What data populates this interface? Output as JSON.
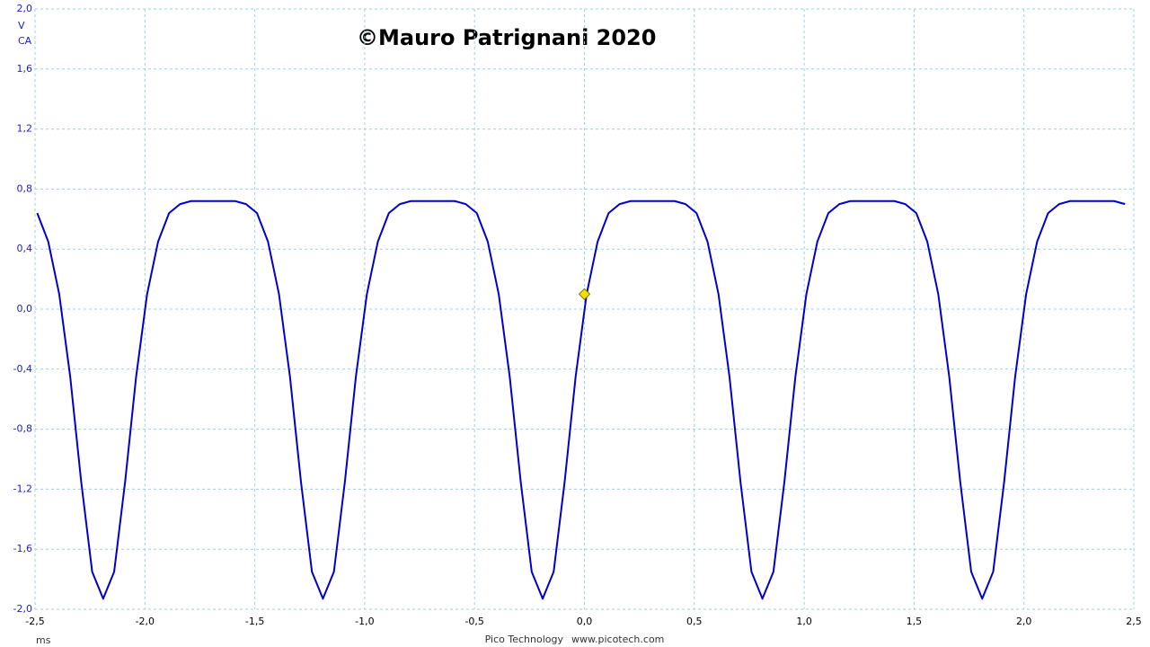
{
  "chart_data": {
    "type": "line",
    "title": "©Mauro Patrignani 2020",
    "y_unit": "V",
    "y_coupling": "CA",
    "x_unit": "ms",
    "footer": [
      "Pico Technology",
      "www.picotech.com"
    ],
    "color": "#0000c8",
    "x": [
      -2.49,
      -2.44,
      -2.39,
      -2.34,
      -2.29,
      -2.24,
      -2.19,
      -2.14,
      -2.09,
      -2.04,
      -1.99,
      -1.94,
      -1.89,
      -1.84,
      -1.79,
      -1.74,
      -1.69,
      -1.64,
      -1.59,
      -1.54,
      -1.49,
      -1.44,
      -1.39,
      -1.34,
      -1.29,
      -1.24,
      -1.19,
      -1.14,
      -1.09,
      -1.04,
      -0.99,
      -0.94,
      -0.89,
      -0.84,
      -0.79,
      -0.74,
      -0.69,
      -0.64,
      -0.59,
      -0.54,
      -0.49,
      -0.44,
      -0.39,
      -0.34,
      -0.29,
      -0.24,
      -0.19,
      -0.14,
      -0.09,
      -0.04,
      0.01,
      0.06,
      0.11,
      0.16,
      0.21,
      0.26,
      0.31,
      0.36,
      0.41,
      0.46,
      0.51,
      0.56,
      0.61,
      0.66,
      0.71,
      0.76,
      0.81,
      0.86,
      0.91,
      0.96,
      1.01,
      1.06,
      1.11,
      1.16,
      1.21,
      1.26,
      1.31,
      1.36,
      1.41,
      1.46,
      1.51,
      1.56,
      1.61,
      1.66,
      1.71,
      1.76,
      1.81,
      1.86,
      1.91,
      1.96,
      2.01,
      2.06,
      2.11,
      2.16,
      2.21,
      2.26,
      2.31,
      2.36,
      2.41,
      2.46
    ],
    "values": [
      0.64,
      0.45,
      0.1,
      -0.45,
      -1.15,
      -1.75,
      -1.93,
      -1.75,
      -1.15,
      -0.45,
      0.1,
      0.45,
      0.64,
      0.7,
      0.72,
      0.72,
      0.72,
      0.72,
      0.72,
      0.7,
      0.64,
      0.45,
      0.1,
      -0.45,
      -1.15,
      -1.75,
      -1.93,
      -1.75,
      -1.15,
      -0.45,
      0.1,
      0.45,
      0.64,
      0.7,
      0.72,
      0.72,
      0.72,
      0.72,
      0.72,
      0.7,
      0.64,
      0.45,
      0.1,
      -0.45,
      -1.15,
      -1.75,
      -1.93,
      -1.75,
      -1.15,
      -0.45,
      0.1,
      0.45,
      0.64,
      0.7,
      0.72,
      0.72,
      0.72,
      0.72,
      0.72,
      0.7,
      0.64,
      0.45,
      0.1,
      -0.45,
      -1.15,
      -1.75,
      -1.93,
      -1.75,
      -1.15,
      -0.45,
      0.1,
      0.45,
      0.64,
      0.7,
      0.72,
      0.72,
      0.72,
      0.72,
      0.72,
      0.7,
      0.64,
      0.45,
      0.1,
      -0.45,
      -1.15,
      -1.75,
      -1.93,
      -1.75,
      -1.15,
      -0.45,
      0.1,
      0.45,
      0.64,
      0.7,
      0.72,
      0.72,
      0.72,
      0.72,
      0.72,
      0.7
    ],
    "trigger": {
      "x": 0,
      "y": 0.1,
      "color": "#f0e000"
    },
    "xlim": [
      -2.5,
      2.5
    ],
    "xticks": [
      {
        "value": -2.5,
        "label": "-2,5"
      },
      {
        "value": -2,
        "label": "-2,0"
      },
      {
        "value": -1.5,
        "label": "-1,5"
      },
      {
        "value": -1,
        "label": "-1,0"
      },
      {
        "value": -0.5,
        "label": "-0,5"
      },
      {
        "value": 0,
        "label": "0,0"
      },
      {
        "value": 0.5,
        "label": "0,5"
      },
      {
        "value": 1,
        "label": "1,0"
      },
      {
        "value": 1.5,
        "label": "1,5"
      },
      {
        "value": 2,
        "label": "2,0"
      },
      {
        "value": 2.5,
        "label": "2,5"
      }
    ],
    "ylim": [
      -2,
      2
    ],
    "yticks": [
      {
        "value": -2,
        "label": "-2,0"
      },
      {
        "value": -1.6,
        "label": "-1,6"
      },
      {
        "value": -1.2,
        "label": "-1,2"
      },
      {
        "value": -0.8,
        "label": "-0,8"
      },
      {
        "value": -0.4,
        "label": "-0,4"
      },
      {
        "value": 0,
        "label": "0,0"
      },
      {
        "value": 0.4,
        "label": "0,4"
      },
      {
        "value": 0.8,
        "label": "0,8"
      },
      {
        "value": 1.2,
        "label": "1,2"
      },
      {
        "value": 1.6,
        "label": "1,6"
      },
      {
        "value": 2,
        "label": "2,0"
      }
    ],
    "grid": true
  }
}
